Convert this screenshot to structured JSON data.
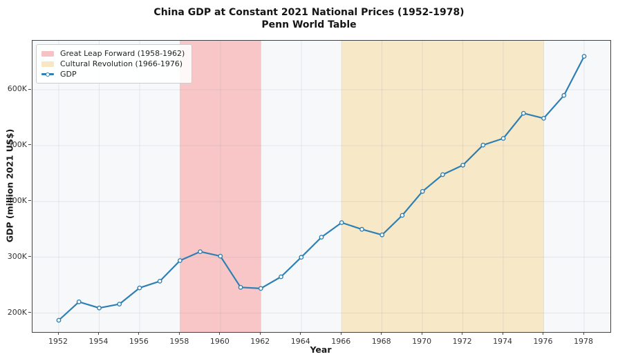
{
  "title": {
    "line1": "China GDP at Constant 2021 National Prices (1952-1978)",
    "line2": "Penn World Table"
  },
  "axes": {
    "x_label": "Year",
    "y_label": "GDP (million 2021 US$)"
  },
  "legend": {
    "items": [
      {
        "type": "patch",
        "label": "Great Leap Forward (1958-1962)",
        "color": "#f6c2c4"
      },
      {
        "type": "patch",
        "label": "Cultural Revolution (1966-1976)",
        "color": "#f8e7c3"
      },
      {
        "type": "line",
        "label": "GDP",
        "color": "#2e7fb2"
      }
    ]
  },
  "colors": {
    "plot_bg": "#f7f8fa",
    "grid": "rgba(125,135,150,0.16)",
    "spine": "#3e4044",
    "tick": "#444444",
    "line": "#2e7fb2",
    "marker_fill": "#ffffff"
  },
  "chart_data": {
    "type": "line",
    "title": "China GDP at Constant 2021 National Prices (1952-1978)",
    "subtitle": "Penn World Table",
    "xlabel": "Year",
    "ylabel": "GDP (million 2021 US$)",
    "x": [
      1952,
      1953,
      1954,
      1955,
      1956,
      1957,
      1958,
      1959,
      1960,
      1961,
      1962,
      1963,
      1964,
      1965,
      1966,
      1967,
      1968,
      1969,
      1970,
      1971,
      1972,
      1973,
      1974,
      1975,
      1976,
      1977,
      1978
    ],
    "series": [
      {
        "name": "GDP",
        "color": "#2e7fb2",
        "values": [
          187000,
          220000,
          209000,
          216000,
          245000,
          257000,
          294000,
          310000,
          302000,
          246000,
          244000,
          265000,
          300000,
          336000,
          362000,
          350000,
          340000,
          375000,
          418000,
          448000,
          465000,
          501000,
          513000,
          558000,
          549000,
          590000,
          660000
        ]
      }
    ],
    "xlim": [
      1950.7,
      1979.3
    ],
    "ylim": [
      166000,
      688000
    ],
    "x_ticks": [
      {
        "value": 1952,
        "label": "1952"
      },
      {
        "value": 1954,
        "label": "1954"
      },
      {
        "value": 1956,
        "label": "1956"
      },
      {
        "value": 1958,
        "label": "1958"
      },
      {
        "value": 1960,
        "label": "1960"
      },
      {
        "value": 1962,
        "label": "1962"
      },
      {
        "value": 1964,
        "label": "1964"
      },
      {
        "value": 1966,
        "label": "1966"
      },
      {
        "value": 1968,
        "label": "1968"
      },
      {
        "value": 1970,
        "label": "1970"
      },
      {
        "value": 1972,
        "label": "1972"
      },
      {
        "value": 1974,
        "label": "1974"
      },
      {
        "value": 1976,
        "label": "1976"
      },
      {
        "value": 1978,
        "label": "1978"
      }
    ],
    "y_ticks": [
      {
        "value": 200000,
        "label": "200K"
      },
      {
        "value": 300000,
        "label": "300K"
      },
      {
        "value": 400000,
        "label": "400K"
      },
      {
        "value": 500000,
        "label": "500K"
      },
      {
        "value": 600000,
        "label": "600K"
      }
    ],
    "grid": true,
    "legend_position": "upper-left",
    "bands": [
      {
        "id": "great-leap-forward-band",
        "label": "Great Leap Forward (1958-1962)",
        "from": 1958,
        "to": 1962,
        "color": "#f8c6c6"
      },
      {
        "id": "cultural-revolution-band",
        "label": "Cultural Revolution (1966-1976)",
        "from": 1966,
        "to": 1976,
        "color": "#f7e8c8"
      }
    ]
  }
}
